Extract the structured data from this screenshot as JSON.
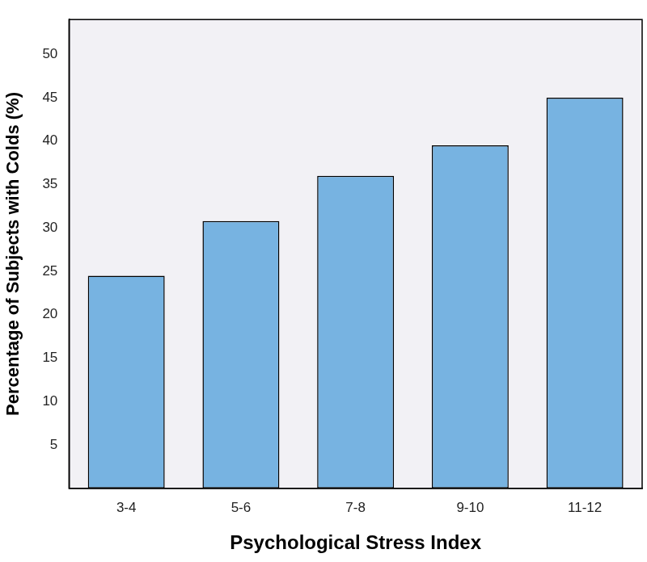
{
  "chart_data": {
    "type": "bar",
    "categories": [
      "3-4",
      "5-6",
      "7-8",
      "9-10",
      "11-12"
    ],
    "values": [
      24.5,
      30.8,
      36,
      39.5,
      45
    ],
    "color": "#77b3e1",
    "xlabel": "Psychological Stress Index",
    "ylabel": "Percentage of Subjects with Colds (%)",
    "ylim": [
      0,
      54
    ],
    "yticks": [
      5,
      10,
      15,
      20,
      25,
      30,
      35,
      40,
      45,
      50
    ],
    "grid": false
  }
}
